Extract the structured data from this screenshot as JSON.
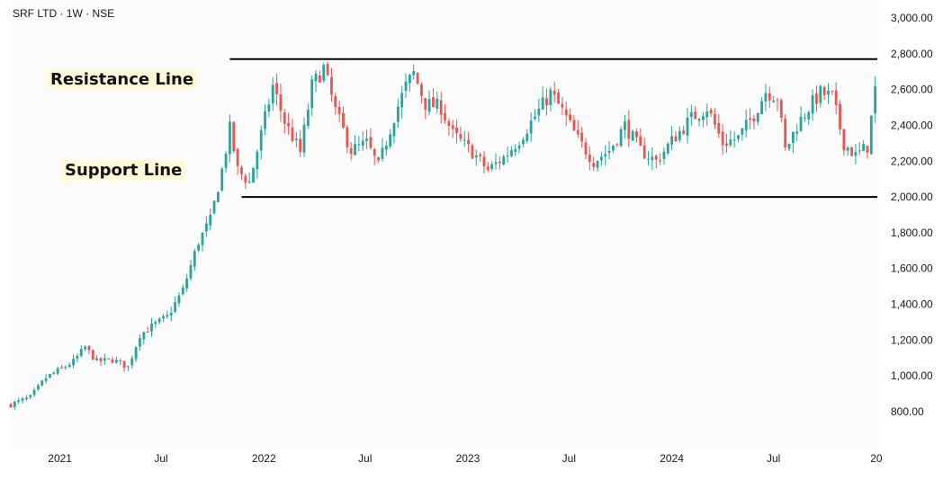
{
  "header": {
    "symbol_label": "SRF LTD · 1W · NSE"
  },
  "annotations": {
    "resistance": "Resistance Line",
    "support": "Support Line"
  },
  "colors": {
    "up": "#26a69a",
    "down": "#ef5350",
    "level_line": "#000000",
    "axis_text": "#131722",
    "panel_bg": "#fbfbfb"
  },
  "chart_data": {
    "type": "candlestick",
    "title": "SRF LTD · 1W · NSE",
    "x_ticks": [
      {
        "label": "2021",
        "date": "2021-01-01"
      },
      {
        "label": "Jul",
        "date": "2021-07-01"
      },
      {
        "label": "2022",
        "date": "2022-01-01"
      },
      {
        "label": "Jul",
        "date": "2022-07-01"
      },
      {
        "label": "2023",
        "date": "2023-01-01"
      },
      {
        "label": "Jul",
        "date": "2023-07-01"
      },
      {
        "label": "2024",
        "date": "2024-01-01"
      },
      {
        "label": "Jul",
        "date": "2024-07-01"
      },
      {
        "label": "20",
        "date": "2025-01-01"
      }
    ],
    "y_ticks": [
      "3,000.00",
      "2,800.00",
      "2,600.00",
      "2,400.00",
      "2,200.00",
      "2,000.00",
      "1,800.00",
      "1,600.00",
      "1,400.00",
      "1,200.00",
      "1,000.00",
      "800.00"
    ],
    "y_tick_values": [
      3000,
      2800,
      2600,
      2400,
      2200,
      2000,
      1800,
      1600,
      1400,
      1200,
      1000,
      800
    ],
    "ylim": [
      720,
      3090
    ],
    "xlim": [
      "2020-10-05",
      "2025-01-06"
    ],
    "levels": [
      {
        "name": "Resistance Line",
        "value": 2770,
        "from": "2021-11-01",
        "to": "2025-01-06"
      },
      {
        "name": "Support Line",
        "value": 2000,
        "from": "2021-11-22",
        "to": "2025-01-06"
      }
    ],
    "anchors": [
      [
        "2020-10-05",
        840
      ],
      [
        "2020-11-09",
        880
      ],
      [
        "2020-12-07",
        990
      ],
      [
        "2021-01-04",
        1040
      ],
      [
        "2021-01-25",
        1080
      ],
      [
        "2021-02-15",
        1160
      ],
      [
        "2021-03-08",
        1080
      ],
      [
        "2021-04-05",
        1090
      ],
      [
        "2021-05-03",
        1050
      ],
      [
        "2021-05-24",
        1230
      ],
      [
        "2021-06-21",
        1290
      ],
      [
        "2021-07-12",
        1330
      ],
      [
        "2021-08-09",
        1480
      ],
      [
        "2021-09-06",
        1750
      ],
      [
        "2021-09-27",
        1870
      ],
      [
        "2021-10-18",
        2150
      ],
      [
        "2021-11-01",
        2380
      ],
      [
        "2021-11-15",
        2150
      ],
      [
        "2021-12-06",
        2080
      ],
      [
        "2021-12-27",
        2350
      ],
      [
        "2022-01-17",
        2620
      ],
      [
        "2022-02-07",
        2420
      ],
      [
        "2022-03-07",
        2250
      ],
      [
        "2022-03-28",
        2620
      ],
      [
        "2022-04-18",
        2720
      ],
      [
        "2022-05-09",
        2480
      ],
      [
        "2022-06-06",
        2260
      ],
      [
        "2022-07-04",
        2300
      ],
      [
        "2022-07-25",
        2170
      ],
      [
        "2022-08-22",
        2450
      ],
      [
        "2022-09-12",
        2620
      ],
      [
        "2022-09-26",
        2690
      ],
      [
        "2022-10-17",
        2520
      ],
      [
        "2022-11-14",
        2500
      ],
      [
        "2022-12-05",
        2350
      ],
      [
        "2023-01-09",
        2250
      ],
      [
        "2023-02-06",
        2150
      ],
      [
        "2023-03-06",
        2220
      ],
      [
        "2023-04-03",
        2320
      ],
      [
        "2023-05-01",
        2450
      ],
      [
        "2023-05-29",
        2580
      ],
      [
        "2023-06-19",
        2480
      ],
      [
        "2023-07-17",
        2320
      ],
      [
        "2023-08-14",
        2200
      ],
      [
        "2023-09-11",
        2260
      ],
      [
        "2023-10-09",
        2400
      ],
      [
        "2023-11-06",
        2260
      ],
      [
        "2023-12-04",
        2200
      ],
      [
        "2024-01-08",
        2340
      ],
      [
        "2024-02-05",
        2440
      ],
      [
        "2024-03-04",
        2500
      ],
      [
        "2024-04-01",
        2300
      ],
      [
        "2024-04-29",
        2330
      ],
      [
        "2024-05-27",
        2460
      ],
      [
        "2024-06-17",
        2590
      ],
      [
        "2024-07-08",
        2560
      ],
      [
        "2024-07-22",
        2260
      ],
      [
        "2024-08-12",
        2400
      ],
      [
        "2024-09-02",
        2500
      ],
      [
        "2024-09-23",
        2580
      ],
      [
        "2024-10-14",
        2560
      ],
      [
        "2024-11-04",
        2300
      ],
      [
        "2024-11-25",
        2230
      ],
      [
        "2024-12-16",
        2280
      ],
      [
        "2024-12-30",
        2600
      ]
    ]
  }
}
